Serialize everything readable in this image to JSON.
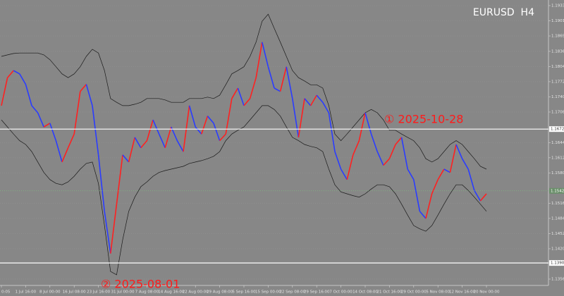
{
  "chart_data": {
    "type": "line",
    "title": "EURUSD  H4",
    "categories": [
      "0:05",
      null,
      null,
      null,
      "1 Jul 16:00",
      null,
      null,
      null,
      "8 Jul 00:00",
      null,
      null,
      null,
      "16 Jul 08:00",
      null,
      null,
      null,
      "23 Jul 16:00",
      null,
      null,
      null,
      "31 Jul 00:00",
      null,
      null,
      null,
      "7 Aug 08:00",
      null,
      null,
      null,
      "14 Aug 16:00",
      null,
      null,
      null,
      "22 Aug 00:00",
      null,
      null,
      null,
      "29 Aug 08:00",
      null,
      null,
      null,
      "5 Sep 16:00",
      null,
      null,
      null,
      "15 Sep 00:00",
      null,
      null,
      null,
      "22 Sep 08:00",
      null,
      null,
      null,
      "29 Sep 16:00",
      null,
      null,
      null,
      "7 Oct 00:00",
      null,
      null,
      null,
      "14 Oct 08:00",
      null,
      null,
      null,
      "21 Oct 16:00",
      null,
      null,
      null,
      "29 Oct 00:00",
      null,
      null,
      null,
      "5 Nov 08:00",
      null,
      null,
      null,
      "12 Nov 16:00",
      null,
      null,
      null,
      "20 Nov 00:00"
    ],
    "series": [
      {
        "up_color": "#ff2020",
        "down_color": "#2a3cff",
        "values": [
          1.1722,
          1.1781,
          1.1796,
          1.1789,
          1.1767,
          1.1722,
          1.1707,
          1.1677,
          1.1685,
          1.1648,
          1.1603,
          1.1633,
          1.1662,
          1.1752,
          1.1767,
          1.1722,
          1.1618,
          1.1499,
          1.141,
          1.1514,
          1.1618,
          1.1603,
          1.1655,
          1.1633,
          1.1648,
          1.1692,
          1.1662,
          1.1633,
          1.1677,
          1.1648,
          1.1625,
          1.1722,
          1.1677,
          1.1662,
          1.17,
          1.1685,
          1.1648,
          1.1662,
          1.1737,
          1.1759,
          1.1722,
          1.1737,
          1.1781,
          1.1856,
          1.1804,
          1.1759,
          1.1752,
          1.1804,
          1.1737,
          1.1655,
          1.1737,
          1.1722,
          1.1744,
          1.1729,
          1.1707,
          1.1625,
          1.1588,
          1.1566,
          1.1618,
          1.1648,
          1.1707,
          1.1662,
          1.1625,
          1.1596,
          1.161,
          1.164,
          1.1655,
          1.1588,
          1.1566,
          1.1499,
          1.1484,
          1.1536,
          1.1566,
          1.1588,
          1.1581,
          1.164,
          1.161,
          1.1588,
          1.1543,
          1.1521,
          1.1536
        ]
      },
      {
        "color": "#1a1a1a",
        "values": [
          1.1826,
          1.1829,
          1.1832,
          1.1833,
          1.1833,
          1.1833,
          1.1833,
          1.1829,
          1.1819,
          1.1804,
          1.1789,
          1.1781,
          1.1789,
          1.1804,
          1.1826,
          1.1841,
          1.1833,
          1.1796,
          1.1737,
          1.1729,
          1.1722,
          1.1722,
          1.1725,
          1.1729,
          1.1737,
          1.1737,
          1.1737,
          1.1734,
          1.1729,
          1.1729,
          1.1729,
          1.1737,
          1.1737,
          1.1737,
          1.174,
          1.1737,
          1.1744,
          1.1766,
          1.1789,
          1.1796,
          1.1804,
          1.1826,
          1.1856,
          1.19,
          1.1915,
          1.1885,
          1.1856,
          1.1826,
          1.1796,
          1.1781,
          1.1774,
          1.1766,
          1.1766,
          1.1759,
          1.1722,
          1.1662,
          1.1648,
          1.1662,
          1.1677,
          1.1692,
          1.1707,
          1.1714,
          1.1707,
          1.1692,
          1.167,
          1.167,
          1.1662,
          1.1655,
          1.1648,
          1.1633,
          1.161,
          1.1603,
          1.161,
          1.1625,
          1.164,
          1.1648,
          1.164,
          1.1625,
          1.161,
          1.1594,
          1.1588
        ]
      },
      {
        "color": "#1a1a1a",
        "values": [
          1.1692,
          1.1677,
          1.1662,
          1.1648,
          1.164,
          1.1625,
          1.1603,
          1.1581,
          1.1566,
          1.1558,
          1.1555,
          1.1561,
          1.1573,
          1.1588,
          1.16,
          1.1603,
          1.1558,
          1.1469,
          1.1372,
          1.1365,
          1.1439,
          1.1499,
          1.1529,
          1.1551,
          1.1561,
          1.1573,
          1.1581,
          1.1585,
          1.1588,
          1.1591,
          1.1594,
          1.16,
          1.1603,
          1.1606,
          1.161,
          1.1615,
          1.1625,
          1.1648,
          1.1662,
          1.167,
          1.1677,
          1.1692,
          1.1707,
          1.1722,
          1.1722,
          1.1714,
          1.17,
          1.1677,
          1.1655,
          1.1648,
          1.164,
          1.1636,
          1.1633,
          1.1625,
          1.1588,
          1.1555,
          1.154,
          1.1536,
          1.1532,
          1.1529,
          1.1536,
          1.1546,
          1.1555,
          1.1555,
          1.1551,
          1.1536,
          1.1514,
          1.1491,
          1.1469,
          1.1462,
          1.1457,
          1.1469,
          1.1491,
          1.1514,
          1.1536,
          1.1555,
          1.1555,
          1.1543,
          1.1529,
          1.1514,
          1.1499
        ]
      }
    ],
    "ylim": [
      1.13426,
      1.19449
    ],
    "yticks": [
      {
        "value": 1.1933,
        "label": "1.19330"
      },
      {
        "value": 1.1901,
        "label": "1.19010"
      },
      {
        "value": 1.1869,
        "label": "1.18690"
      },
      {
        "value": 1.18365,
        "label": "1.18365"
      },
      {
        "value": 1.18045,
        "label": "1.18045"
      },
      {
        "value": 1.17725,
        "label": "1.17725"
      },
      {
        "value": 1.17405,
        "label": "1.17405"
      },
      {
        "value": 1.17085,
        "label": "1.17085"
      },
      {
        "value": 1.1644,
        "label": "1.16440"
      },
      {
        "value": 1.1612,
        "label": "1.16120"
      },
      {
        "value": 1.158,
        "label": "1.15800"
      },
      {
        "value": 1.1516,
        "label": "1.15160"
      },
      {
        "value": 1.1484,
        "label": "1.14840"
      },
      {
        "value": 1.1452,
        "label": "1.14520"
      },
      {
        "value": 1.142,
        "label": "1.14200"
      },
      {
        "value": 1.1356,
        "label": "1.13560"
      }
    ],
    "hlines": [
      {
        "value": 1.16725,
        "label": "1.16725",
        "color": "#ffffff",
        "style": "solid"
      },
      {
        "value": 1.15422,
        "label": "1.15422",
        "color": "#7fbf7f",
        "style": "dotted"
      },
      {
        "value": 1.139,
        "label": "1.13900",
        "color": "#ffffff",
        "style": "solid"
      }
    ],
    "annotations": [
      "① 2025-10-28",
      "② 2025-08-01"
    ],
    "annotation_color": "#ff1a1a",
    "grid": true
  }
}
